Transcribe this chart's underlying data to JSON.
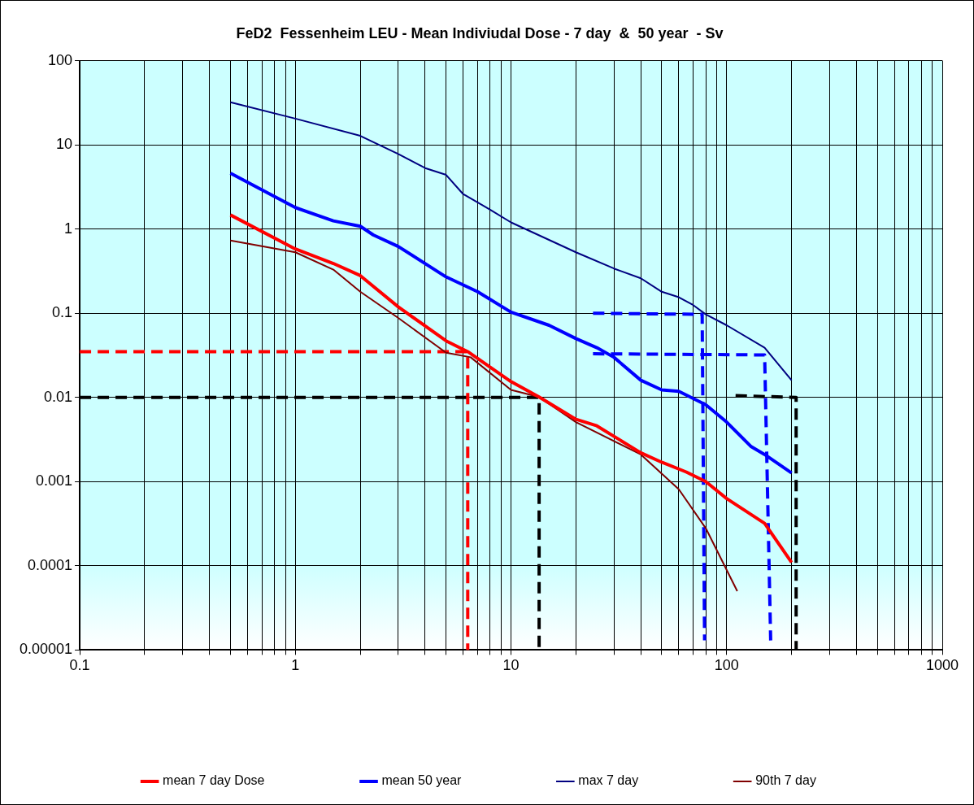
{
  "chart_data": {
    "type": "line",
    "title": "FeD2  Fessenheim LEU - Mean Indiviudal Dose - 7 day  &  50 year  - Sv",
    "log": "xy",
    "grid": true,
    "legend": "bottom",
    "marker": "none",
    "xlim": [
      0.1,
      1000
    ],
    "ylim": [
      1e-05,
      100
    ],
    "xticks": [
      0.1,
      {
        "value": 0.2,
        "label": null
      },
      {
        "value": 0.3,
        "label": null
      },
      {
        "value": 0.4,
        "label": null
      },
      {
        "value": 0.5,
        "label": null
      },
      {
        "value": 0.6,
        "label": null
      },
      {
        "value": 0.7,
        "label": null
      },
      {
        "value": 0.8,
        "label": null
      },
      {
        "value": 0.9,
        "label": null
      },
      1,
      {
        "value": 2,
        "label": null
      },
      {
        "value": 3,
        "label": null
      },
      {
        "value": 4,
        "label": null
      },
      {
        "value": 5,
        "label": null
      },
      {
        "value": 6,
        "label": null
      },
      {
        "value": 7,
        "label": null
      },
      {
        "value": 8,
        "label": null
      },
      {
        "value": 9,
        "label": null
      },
      10,
      {
        "value": 20,
        "label": null
      },
      {
        "value": 30,
        "label": null
      },
      {
        "value": 40,
        "label": null
      },
      {
        "value": 50,
        "label": null
      },
      {
        "value": 60,
        "label": null
      },
      {
        "value": 70,
        "label": null
      },
      {
        "value": 80,
        "label": null
      },
      {
        "value": 90,
        "label": null
      },
      100,
      {
        "value": 200,
        "label": null
      },
      {
        "value": 300,
        "label": null
      },
      {
        "value": 400,
        "label": null
      },
      {
        "value": 500,
        "label": null
      },
      {
        "value": 600,
        "label": null
      },
      {
        "value": 700,
        "label": null
      },
      {
        "value": 800,
        "label": null
      },
      {
        "value": 900,
        "label": null
      },
      1000
    ],
    "yticks": [
      {
        "value": 1e-05,
        "label": "0.00001"
      },
      {
        "value": 0.0001,
        "label": "0.0001"
      },
      0.001,
      0.01,
      0.1,
      1,
      10,
      100
    ],
    "series": [
      {
        "name": "mean 7 day Dose",
        "color": "#ff0000",
        "x": [
          0.5,
          1,
          1.5,
          2,
          3,
          5,
          6.3,
          10,
          13.5,
          20,
          25,
          40,
          50,
          65,
          80,
          100,
          150,
          200
        ],
        "values": [
          1.47,
          0.58,
          0.39,
          0.28,
          0.119,
          0.047,
          0.035,
          0.0154,
          0.0101,
          0.0055,
          0.0046,
          0.0022,
          0.0017,
          0.0013,
          0.001,
          0.00063,
          0.00032,
          0.00011
        ]
      },
      {
        "name": "mean 50 year",
        "color": "#0000ff",
        "x": [
          0.5,
          1,
          1.5,
          2,
          2.3,
          3,
          5,
          7,
          10,
          15,
          20,
          25,
          30,
          40,
          50,
          60,
          80,
          100,
          130,
          150,
          200
        ],
        "values": [
          4.6,
          1.8,
          1.25,
          1.08,
          0.85,
          0.62,
          0.27,
          0.18,
          0.103,
          0.072,
          0.05,
          0.039,
          0.03,
          0.016,
          0.0123,
          0.0118,
          0.0082,
          0.0051,
          0.0026,
          0.0021,
          0.00127
        ]
      },
      {
        "name": "max 7 day",
        "color": "#000080",
        "x": [
          0.5,
          1,
          2,
          3,
          4,
          5,
          6,
          8,
          10,
          20,
          30,
          40,
          50,
          60,
          70,
          80,
          100,
          150,
          200
        ],
        "values": [
          32,
          20.5,
          12.8,
          7.8,
          5.3,
          4.4,
          2.6,
          1.7,
          1.2,
          0.53,
          0.34,
          0.26,
          0.18,
          0.155,
          0.125,
          0.097,
          0.072,
          0.039,
          0.016
        ]
      },
      {
        "name": "90th 7 day",
        "color": "#800000",
        "x": [
          0.5,
          1,
          1.5,
          2,
          3,
          5,
          6.5,
          10,
          13.5,
          20,
          40,
          60,
          80,
          112
        ],
        "values": [
          0.73,
          0.53,
          0.33,
          0.18,
          0.088,
          0.034,
          0.03,
          0.0123,
          0.0101,
          0.0051,
          0.0021,
          0.00081,
          0.00028,
          5e-05
        ]
      },
      {
        "color": "#ff0000",
        "line_style": "dashed",
        "x": [
          0.1,
          6.3,
          6.3
        ],
        "values": [
          0.035,
          0.035,
          1e-05
        ]
      },
      {
        "color": "#000000",
        "line_style": "dashed",
        "x": [
          0.1,
          13.5,
          13.5
        ],
        "values": [
          0.01,
          0.01,
          1e-05
        ]
      },
      {
        "color": "#0000ff",
        "line_style": "dashed",
        "x": [
          24,
          77,
          79
        ],
        "values": [
          0.1,
          0.097,
          1.3e-05
        ]
      },
      {
        "color": "#0000ff",
        "line_style": "dashed",
        "x": [
          24,
          150,
          160
        ],
        "values": [
          0.033,
          0.032,
          1.3e-05
        ]
      },
      {
        "color": "#000000",
        "line_style": "dashed",
        "x": [
          110,
          210,
          210
        ],
        "values": [
          0.0105,
          0.01,
          1e-05
        ]
      }
    ]
  }
}
